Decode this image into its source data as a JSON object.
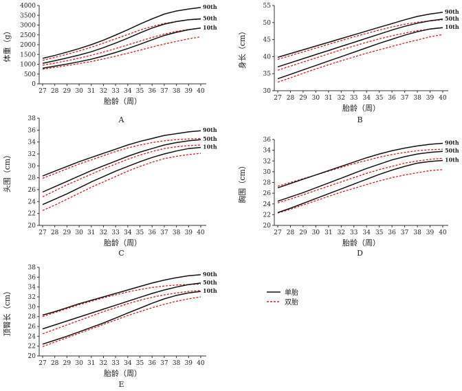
{
  "legend": {
    "items": [
      {
        "label": "单胎",
        "color": "#111111",
        "style": "solid"
      },
      {
        "label": "双胎",
        "color": "#d62020",
        "style": "dashed"
      }
    ]
  },
  "chart_data": [
    {
      "id": "A",
      "type": "line",
      "panel_label": "A",
      "xlabel": "胎龄（周）",
      "ylabel": "体重（g）",
      "xlim": [
        27,
        40
      ],
      "ylim": [
        0,
        4000
      ],
      "yticks": [
        0,
        500,
        1000,
        1500,
        2000,
        2500,
        3000,
        3500,
        4000
      ],
      "xticks": [
        27,
        28,
        29,
        30,
        31,
        32,
        33,
        34,
        35,
        36,
        37,
        38,
        39,
        40
      ],
      "x": [
        27,
        28,
        29,
        30,
        31,
        32,
        33,
        34,
        35,
        36,
        37,
        38,
        39,
        40
      ],
      "percentile_labels": [
        "90th",
        "50th",
        "10th"
      ],
      "series": [
        {
          "group": "singleton",
          "pct": "90th",
          "values": [
            1300,
            1450,
            1620,
            1800,
            2000,
            2230,
            2490,
            2760,
            3050,
            3320,
            3560,
            3720,
            3820,
            3900
          ]
        },
        {
          "group": "singleton",
          "pct": "50th",
          "values": [
            1050,
            1180,
            1320,
            1470,
            1640,
            1850,
            2080,
            2330,
            2600,
            2850,
            3050,
            3180,
            3270,
            3320
          ]
        },
        {
          "group": "singleton",
          "pct": "10th",
          "values": [
            800,
            900,
            1010,
            1130,
            1260,
            1420,
            1600,
            1800,
            2020,
            2250,
            2470,
            2630,
            2760,
            2850
          ]
        },
        {
          "group": "twin",
          "pct": "90th",
          "values": [
            1200,
            1350,
            1510,
            1680,
            1870,
            2080,
            2300,
            2520,
            2740,
            2930,
            3080,
            3190,
            3270,
            3300
          ]
        },
        {
          "group": "twin",
          "pct": "50th",
          "values": [
            950,
            1060,
            1180,
            1310,
            1460,
            1620,
            1800,
            1990,
            2180,
            2370,
            2540,
            2680,
            2780,
            2850
          ]
        },
        {
          "group": "twin",
          "pct": "10th",
          "values": [
            750,
            840,
            930,
            1030,
            1140,
            1270,
            1410,
            1560,
            1720,
            1880,
            2030,
            2170,
            2300,
            2400
          ]
        }
      ]
    },
    {
      "id": "B",
      "type": "line",
      "panel_label": "B",
      "xlabel": "胎龄（周）",
      "ylabel": "身长（cm）",
      "xlim": [
        27,
        40
      ],
      "ylim": [
        30,
        55
      ],
      "yticks": [
        30,
        35,
        40,
        45,
        50,
        55
      ],
      "xticks": [
        27,
        28,
        29,
        30,
        31,
        32,
        33,
        34,
        35,
        36,
        37,
        38,
        39,
        40
      ],
      "x": [
        27,
        28,
        29,
        30,
        31,
        32,
        33,
        34,
        35,
        36,
        37,
        38,
        39,
        40
      ],
      "percentile_labels": [
        "90th",
        "50th",
        "10th"
      ],
      "series": [
        {
          "group": "singleton",
          "pct": "90th",
          "values": [
            39.8,
            40.9,
            42.0,
            43.1,
            44.2,
            45.3,
            46.4,
            47.5,
            48.6,
            49.7,
            50.8,
            51.8,
            52.5,
            53.0
          ]
        },
        {
          "group": "singleton",
          "pct": "50th",
          "values": [
            37.0,
            38.2,
            39.4,
            40.6,
            41.8,
            43.0,
            44.2,
            45.4,
            46.6,
            47.8,
            48.9,
            49.8,
            50.5,
            51.0
          ]
        },
        {
          "group": "singleton",
          "pct": "10th",
          "values": [
            33.5,
            34.8,
            36.1,
            37.4,
            38.7,
            40.0,
            41.3,
            42.6,
            43.9,
            45.1,
            46.3,
            47.3,
            48.1,
            48.5
          ]
        },
        {
          "group": "twin",
          "pct": "90th",
          "values": [
            39.2,
            40.3,
            41.4,
            42.5,
            43.6,
            44.7,
            45.8,
            46.8,
            47.8,
            48.7,
            49.5,
            50.1,
            50.5,
            50.8
          ]
        },
        {
          "group": "twin",
          "pct": "50th",
          "values": [
            36.0,
            37.2,
            38.4,
            39.6,
            40.8,
            42.0,
            43.1,
            44.2,
            45.2,
            46.1,
            46.9,
            47.6,
            48.1,
            48.5
          ]
        },
        {
          "group": "twin",
          "pct": "10th",
          "values": [
            32.5,
            33.8,
            35.1,
            36.4,
            37.6,
            38.8,
            39.9,
            41.0,
            42.0,
            43.0,
            44.0,
            44.9,
            45.8,
            46.5
          ]
        }
      ]
    },
    {
      "id": "C",
      "type": "line",
      "panel_label": "C",
      "xlabel": "胎龄（周）",
      "ylabel": "头围（cm）",
      "xlim": [
        27,
        40
      ],
      "ylim": [
        20,
        38
      ],
      "yticks": [
        20,
        22,
        24,
        26,
        28,
        30,
        32,
        34,
        36,
        38
      ],
      "xticks": [
        27,
        28,
        29,
        30,
        31,
        32,
        33,
        34,
        35,
        36,
        37,
        38,
        39,
        40
      ],
      "x": [
        27,
        28,
        29,
        30,
        31,
        32,
        33,
        34,
        35,
        36,
        37,
        38,
        39,
        40
      ],
      "percentile_labels": [
        "90th",
        "50th",
        "10th"
      ],
      "series": [
        {
          "group": "singleton",
          "pct": "90th",
          "values": [
            28.3,
            29.1,
            29.9,
            30.7,
            31.4,
            32.1,
            32.8,
            33.5,
            34.1,
            34.6,
            35.1,
            35.4,
            35.7,
            35.9
          ]
        },
        {
          "group": "singleton",
          "pct": "50th",
          "values": [
            25.6,
            26.5,
            27.4,
            28.3,
            29.2,
            30.0,
            30.8,
            31.6,
            32.3,
            32.9,
            33.5,
            33.9,
            34.2,
            34.4
          ]
        },
        {
          "group": "singleton",
          "pct": "10th",
          "values": [
            23.5,
            24.4,
            25.3,
            26.3,
            27.3,
            28.2,
            29.1,
            29.9,
            30.7,
            31.4,
            32.0,
            32.5,
            32.9,
            33.1
          ]
        },
        {
          "group": "twin",
          "pct": "90th",
          "values": [
            27.9,
            28.7,
            29.5,
            30.3,
            31.0,
            31.7,
            32.4,
            33.0,
            33.5,
            33.9,
            34.2,
            34.4,
            34.5,
            34.6
          ]
        },
        {
          "group": "twin",
          "pct": "50th",
          "values": [
            24.8,
            25.8,
            26.8,
            27.7,
            28.6,
            29.5,
            30.3,
            31.1,
            31.8,
            32.4,
            32.9,
            33.2,
            33.4,
            33.5
          ]
        },
        {
          "group": "twin",
          "pct": "10th",
          "values": [
            22.5,
            23.4,
            24.4,
            25.4,
            26.4,
            27.3,
            28.2,
            29.1,
            29.9,
            30.6,
            31.2,
            31.6,
            31.9,
            32.1
          ]
        }
      ]
    },
    {
      "id": "D",
      "type": "line",
      "panel_label": "D",
      "xlabel": "胎龄（周）",
      "ylabel": "胸围（cm）",
      "xlim": [
        27,
        40
      ],
      "ylim": [
        20,
        36
      ],
      "yticks": [
        20,
        22,
        24,
        26,
        28,
        30,
        32,
        34,
        36
      ],
      "xticks": [
        27,
        28,
        29,
        30,
        31,
        32,
        33,
        34,
        35,
        36,
        37,
        38,
        39,
        40
      ],
      "x": [
        27,
        28,
        29,
        30,
        31,
        32,
        33,
        34,
        35,
        36,
        37,
        38,
        39,
        40
      ],
      "percentile_labels": [
        "90th",
        "50th",
        "10th"
      ],
      "series": [
        {
          "group": "singleton",
          "pct": "90th",
          "values": [
            27.0,
            27.8,
            28.6,
            29.4,
            30.2,
            31.0,
            31.8,
            32.6,
            33.3,
            33.9,
            34.4,
            34.8,
            35.1,
            35.3
          ]
        },
        {
          "group": "singleton",
          "pct": "50th",
          "values": [
            24.5,
            25.3,
            26.1,
            27.0,
            27.9,
            28.8,
            29.7,
            30.6,
            31.4,
            32.2,
            32.8,
            33.3,
            33.6,
            33.8
          ]
        },
        {
          "group": "singleton",
          "pct": "10th",
          "values": [
            22.4,
            23.2,
            24.1,
            25.0,
            25.9,
            26.8,
            27.7,
            28.6,
            29.5,
            30.3,
            31.0,
            31.6,
            31.9,
            32.1
          ]
        },
        {
          "group": "twin",
          "pct": "90th",
          "values": [
            27.3,
            28.0,
            28.7,
            29.4,
            30.1,
            30.8,
            31.5,
            32.1,
            32.7,
            33.2,
            33.6,
            33.9,
            34.1,
            34.2
          ]
        },
        {
          "group": "twin",
          "pct": "50th",
          "values": [
            24.2,
            24.9,
            25.7,
            26.5,
            27.3,
            28.1,
            28.9,
            29.7,
            30.4,
            31.0,
            31.6,
            32.0,
            32.3,
            32.5
          ]
        },
        {
          "group": "twin",
          "pct": "10th",
          "values": [
            22.3,
            23.0,
            23.8,
            24.6,
            25.4,
            26.2,
            26.9,
            27.6,
            28.3,
            28.9,
            29.4,
            29.8,
            30.2,
            30.4
          ]
        }
      ]
    },
    {
      "id": "E",
      "type": "line",
      "panel_label": "E",
      "xlabel": "胎龄（周）",
      "ylabel": "顶臀长（cm）",
      "xlim": [
        27,
        40
      ],
      "ylim": [
        20,
        38
      ],
      "yticks": [
        20,
        22,
        24,
        26,
        28,
        30,
        32,
        34,
        36,
        38
      ],
      "xticks": [
        27,
        28,
        29,
        30,
        31,
        32,
        33,
        34,
        35,
        36,
        37,
        38,
        39,
        40
      ],
      "x": [
        27,
        28,
        29,
        30,
        31,
        32,
        33,
        34,
        35,
        36,
        37,
        38,
        39,
        40
      ],
      "percentile_labels": [
        "90th",
        "50th",
        "10th"
      ],
      "series": [
        {
          "group": "singleton",
          "pct": "90th",
          "values": [
            28.3,
            29.0,
            29.8,
            30.6,
            31.3,
            32.0,
            32.7,
            33.4,
            34.1,
            34.8,
            35.4,
            35.9,
            36.3,
            36.5
          ]
        },
        {
          "group": "singleton",
          "pct": "50th",
          "values": [
            25.5,
            26.3,
            27.1,
            27.9,
            28.7,
            29.5,
            30.3,
            31.1,
            31.9,
            32.7,
            33.4,
            34.0,
            34.5,
            34.8
          ]
        },
        {
          "group": "singleton",
          "pct": "10th",
          "values": [
            22.4,
            23.2,
            24.0,
            24.9,
            25.8,
            26.7,
            27.7,
            28.7,
            29.7,
            30.7,
            31.6,
            32.3,
            32.8,
            33.1
          ]
        },
        {
          "group": "twin",
          "pct": "90th",
          "values": [
            28.0,
            28.8,
            29.6,
            30.4,
            31.1,
            31.8,
            32.4,
            33.0,
            33.5,
            33.9,
            34.2,
            34.4,
            34.5,
            34.6
          ]
        },
        {
          "group": "twin",
          "pct": "50th",
          "values": [
            24.5,
            25.4,
            26.3,
            27.2,
            28.1,
            29.0,
            29.8,
            30.6,
            31.3,
            31.9,
            32.4,
            32.8,
            33.1,
            33.3
          ]
        },
        {
          "group": "twin",
          "pct": "10th",
          "values": [
            21.9,
            22.8,
            23.7,
            24.6,
            25.5,
            26.4,
            27.3,
            28.2,
            29.0,
            29.8,
            30.5,
            31.1,
            31.6,
            32.0
          ]
        }
      ]
    }
  ]
}
